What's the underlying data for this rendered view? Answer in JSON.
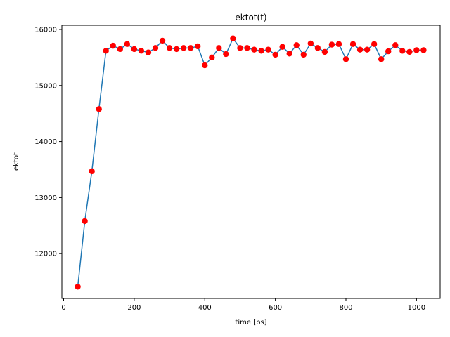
{
  "chart_data": {
    "type": "line",
    "title": "ektot(t)",
    "xlabel": "time [ps]",
    "ylabel": "ektot",
    "xlim": [
      -5,
      1067
    ],
    "ylim": [
      11200,
      16075
    ],
    "xticks": [
      0,
      200,
      400,
      600,
      800,
      1000
    ],
    "yticks": [
      12000,
      13000,
      14000,
      15000,
      16000
    ],
    "grid": false,
    "line_color": "#1f77b4",
    "marker_color": "#ff0000",
    "series": [
      {
        "x": [
          40,
          60,
          80,
          100,
          120,
          140,
          160,
          180,
          200,
          220,
          240,
          260,
          280,
          300,
          320,
          340,
          360,
          380,
          400,
          420,
          440,
          460,
          480,
          500,
          520,
          540,
          560,
          580,
          600,
          620,
          640,
          660,
          680,
          700,
          720,
          740,
          760,
          780,
          800,
          820,
          840,
          860,
          880,
          900,
          920,
          940,
          960,
          980,
          1000,
          1020
        ],
        "values": [
          11410,
          12580,
          13470,
          14580,
          15620,
          15710,
          15650,
          15740,
          15650,
          15620,
          15590,
          15670,
          15800,
          15670,
          15650,
          15670,
          15670,
          15700,
          15360,
          15500,
          15670,
          15560,
          15840,
          15670,
          15670,
          15640,
          15620,
          15640,
          15550,
          15690,
          15570,
          15720,
          15550,
          15750,
          15670,
          15600,
          15730,
          15740,
          15470,
          15740,
          15640,
          15640,
          15740,
          15470,
          15610,
          15720,
          15620,
          15600,
          15630,
          15630
        ]
      }
    ]
  }
}
